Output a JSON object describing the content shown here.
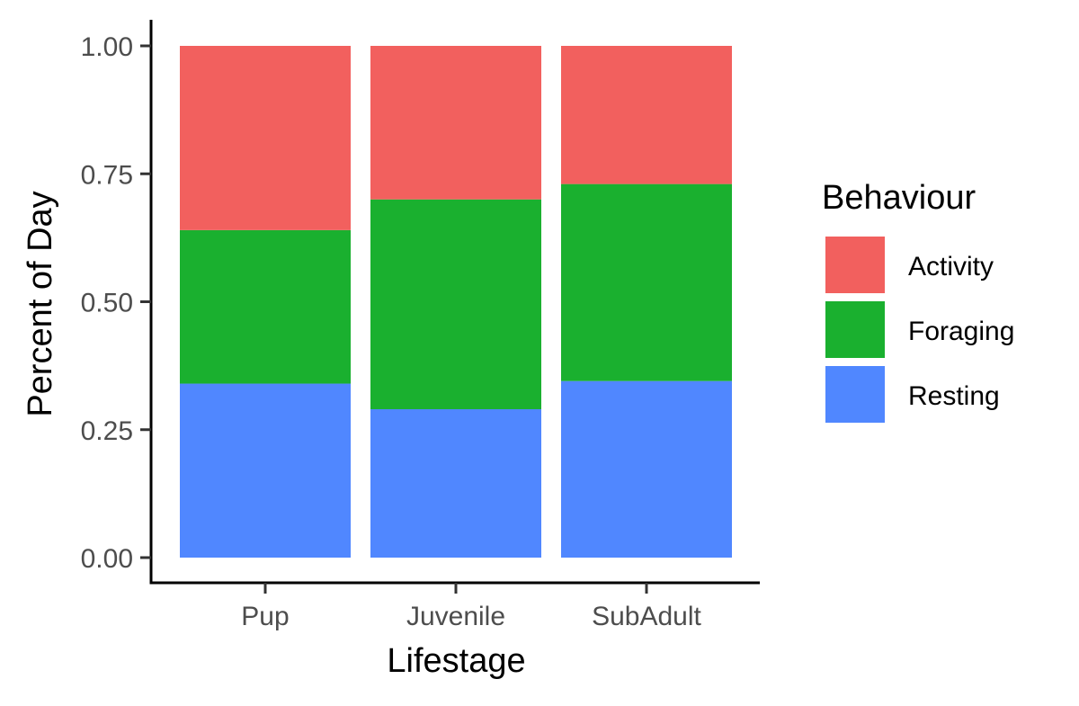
{
  "chart_data": {
    "type": "bar",
    "stacked": true,
    "title": "",
    "xlabel": "Lifestage",
    "ylabel": "Percent of Day",
    "categories": [
      "Pup",
      "Juvenile",
      "SubAdult"
    ],
    "series": [
      {
        "name": "Resting",
        "values": [
          0.34,
          0.29,
          0.345
        ],
        "color": "#5087FF"
      },
      {
        "name": "Foraging",
        "values": [
          0.3,
          0.41,
          0.385
        ],
        "color": "#1AB02F"
      },
      {
        "name": "Activity",
        "values": [
          0.36,
          0.3,
          0.27
        ],
        "color": "#F2605E"
      }
    ],
    "ylim": [
      0,
      1
    ],
    "yticks": [
      0,
      0.25,
      0.5,
      0.75,
      1
    ],
    "ytick_labels": [
      "0.00",
      "0.25",
      "0.50",
      "0.75",
      "1.00"
    ],
    "grid": false,
    "legend": {
      "title": "Behaviour",
      "position": "right",
      "order": [
        "Activity",
        "Foraging",
        "Resting"
      ]
    }
  }
}
